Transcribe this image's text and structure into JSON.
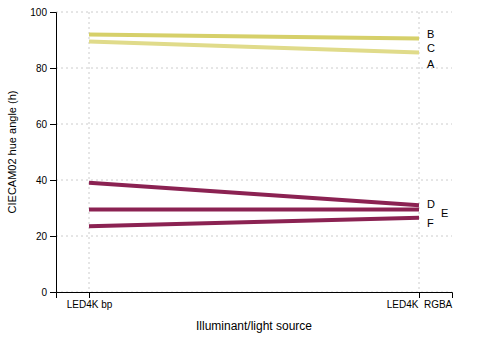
{
  "chart_data": {
    "type": "line",
    "categories": [
      "LED4K bp",
      "LED4K  RGBA"
    ],
    "x_label": "Illuminant/light source",
    "y_label": "CIECAM02 hue angle (h)",
    "ylim": [
      0,
      100
    ],
    "yticks": [
      0,
      20,
      40,
      60,
      80,
      100
    ],
    "grid": true,
    "series": [
      {
        "color": "#d6d06a",
        "values": [
          92.0,
          90.5
        ]
      },
      {
        "color": "#e0db8a",
        "values": [
          89.5,
          85.5
        ]
      },
      {
        "color": "#8b2252",
        "values": [
          39.0,
          31.0
        ]
      },
      {
        "color": "#8b2252",
        "values": [
          29.5,
          29.5
        ]
      },
      {
        "color": "#8b2252",
        "values": [
          23.5,
          26.5
        ]
      }
    ],
    "annotations": [
      {
        "text": "B",
        "y": 92.0
      },
      {
        "text": "C",
        "y": 87.0
      },
      {
        "text": "A",
        "y": 81.5
      },
      {
        "text": "D",
        "y": 31.5
      },
      {
        "text": "E",
        "y": 28.2
      },
      {
        "text": "F",
        "y": 24.5
      }
    ]
  }
}
